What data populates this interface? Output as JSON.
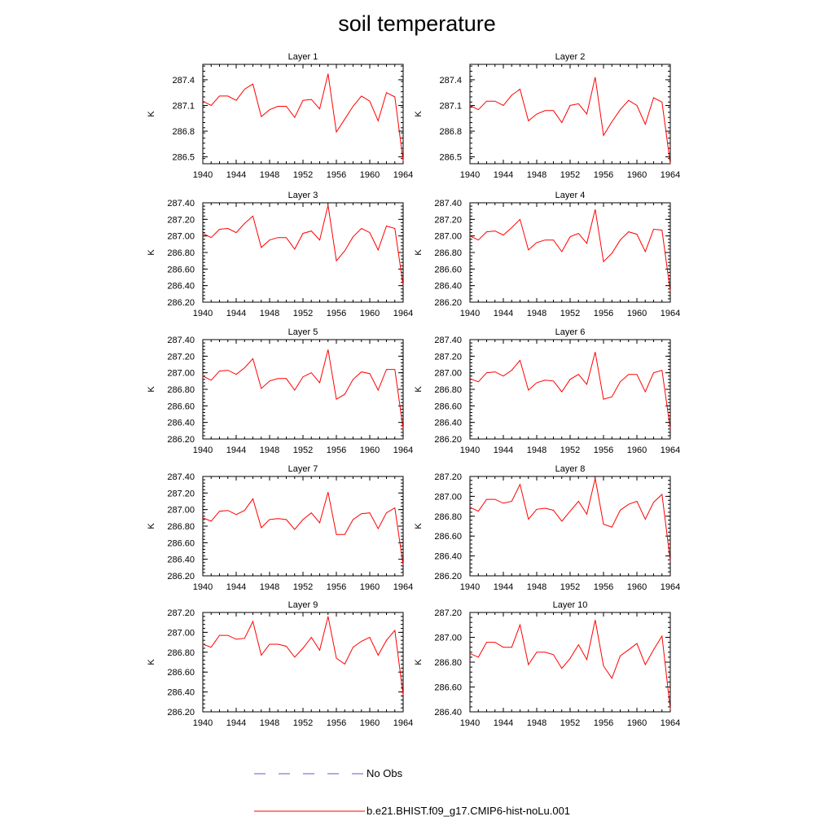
{
  "title": "soil temperature",
  "legend": [
    {
      "label": "No Obs",
      "color": "#5b5bd6",
      "dash": true
    },
    {
      "label": "b.e21.BHIST.f09_g17.CMIP6-hist-noLu.001",
      "color": "#ff0000",
      "dash": false
    }
  ],
  "chart_data": [
    {
      "type": "line",
      "title": "Layer 1",
      "ylabel": "K",
      "xlim": [
        1940,
        1964
      ],
      "ylim": [
        286.42,
        287.58
      ],
      "x_ticks": [
        "1940",
        "1944",
        "1948",
        "1952",
        "1956",
        "1960",
        "1964"
      ],
      "y_ticks": [
        286.5,
        286.8,
        287.1,
        287.4
      ],
      "y_tick_labels": [
        "286.5",
        "286.8",
        "287.1",
        "287.4"
      ],
      "series": [
        {
          "color": "#ff0000",
          "x": [
            1940,
            1941,
            1942,
            1943,
            1944,
            1945,
            1946,
            1947,
            1948,
            1949,
            1950,
            1951,
            1952,
            1953,
            1954,
            1955,
            1956,
            1957,
            1958,
            1959,
            1960,
            1961,
            1962,
            1963,
            1964
          ],
          "values": [
            287.15,
            287.1,
            287.21,
            287.21,
            287.16,
            287.29,
            287.35,
            286.97,
            287.05,
            287.09,
            287.09,
            286.96,
            287.16,
            287.17,
            287.06,
            287.47,
            286.79,
            286.94,
            287.09,
            287.21,
            287.15,
            286.92,
            287.25,
            287.2,
            286.45
          ]
        }
      ]
    },
    {
      "type": "line",
      "title": "Layer 2",
      "ylabel": "K",
      "xlim": [
        1940,
        1964
      ],
      "ylim": [
        286.42,
        287.58
      ],
      "x_ticks": [
        "1940",
        "1944",
        "1948",
        "1952",
        "1956",
        "1960",
        "1964"
      ],
      "y_ticks": [
        286.5,
        286.8,
        287.1,
        287.4
      ],
      "y_tick_labels": [
        "286.5",
        "286.8",
        "287.1",
        "287.4"
      ],
      "series": [
        {
          "color": "#ff0000",
          "x": [
            1940,
            1941,
            1942,
            1943,
            1944,
            1945,
            1946,
            1947,
            1948,
            1949,
            1950,
            1951,
            1952,
            1953,
            1954,
            1955,
            1956,
            1957,
            1958,
            1959,
            1960,
            1961,
            1962,
            1963,
            1964
          ],
          "values": [
            287.1,
            287.05,
            287.15,
            287.15,
            287.1,
            287.22,
            287.29,
            286.92,
            287.0,
            287.04,
            287.04,
            286.9,
            287.1,
            287.12,
            287.0,
            287.43,
            286.75,
            286.91,
            287.05,
            287.16,
            287.1,
            286.88,
            287.19,
            287.14,
            286.42
          ]
        }
      ]
    },
    {
      "type": "line",
      "title": "Layer 3",
      "ylabel": "K",
      "xlim": [
        1940,
        1964
      ],
      "ylim": [
        286.2,
        287.4
      ],
      "x_ticks": [
        "1940",
        "1944",
        "1948",
        "1952",
        "1956",
        "1960",
        "1964"
      ],
      "y_ticks": [
        286.2,
        286.4,
        286.6,
        286.8,
        287.0,
        287.2,
        287.4
      ],
      "y_tick_labels": [
        "286.20",
        "286.40",
        "286.60",
        "286.80",
        "287.00",
        "287.20",
        "287.40"
      ],
      "series": [
        {
          "color": "#ff0000",
          "x": [
            1940,
            1941,
            1942,
            1943,
            1944,
            1945,
            1946,
            1947,
            1948,
            1949,
            1950,
            1951,
            1952,
            1953,
            1954,
            1955,
            1956,
            1957,
            1958,
            1959,
            1960,
            1961,
            1962,
            1963,
            1964
          ],
          "values": [
            287.03,
            286.98,
            287.08,
            287.09,
            287.04,
            287.15,
            287.24,
            286.86,
            286.95,
            286.98,
            286.98,
            286.84,
            287.03,
            287.06,
            286.95,
            287.37,
            286.7,
            286.82,
            286.99,
            287.09,
            287.04,
            286.83,
            287.12,
            287.09,
            286.4
          ]
        }
      ]
    },
    {
      "type": "line",
      "title": "Layer 4",
      "ylabel": "K",
      "xlim": [
        1940,
        1964
      ],
      "ylim": [
        286.2,
        287.4
      ],
      "x_ticks": [
        "1940",
        "1944",
        "1948",
        "1952",
        "1956",
        "1960",
        "1964"
      ],
      "y_ticks": [
        286.2,
        286.4,
        286.6,
        286.8,
        287.0,
        287.2,
        287.4
      ],
      "y_tick_labels": [
        "286.20",
        "286.40",
        "286.60",
        "286.80",
        "287.00",
        "287.20",
        "287.40"
      ],
      "series": [
        {
          "color": "#ff0000",
          "x": [
            1940,
            1941,
            1942,
            1943,
            1944,
            1945,
            1946,
            1947,
            1948,
            1949,
            1950,
            1951,
            1952,
            1953,
            1954,
            1955,
            1956,
            1957,
            1958,
            1959,
            1960,
            1961,
            1962,
            1963,
            1964
          ],
          "values": [
            287.0,
            286.95,
            287.05,
            287.06,
            287.01,
            287.1,
            287.2,
            286.83,
            286.92,
            286.95,
            286.95,
            286.81,
            286.99,
            287.03,
            286.91,
            287.32,
            286.69,
            286.79,
            286.95,
            287.05,
            287.02,
            286.81,
            287.08,
            287.07,
            286.33
          ]
        }
      ]
    },
    {
      "type": "line",
      "title": "Layer 5",
      "ylabel": "K",
      "xlim": [
        1940,
        1964
      ],
      "ylim": [
        286.2,
        287.4
      ],
      "x_ticks": [
        "1940",
        "1944",
        "1948",
        "1952",
        "1956",
        "1960",
        "1964"
      ],
      "y_ticks": [
        286.2,
        286.4,
        286.6,
        286.8,
        287.0,
        287.2,
        287.4
      ],
      "y_tick_labels": [
        "286.20",
        "286.40",
        "286.60",
        "286.80",
        "287.00",
        "287.20",
        "287.40"
      ],
      "series": [
        {
          "color": "#ff0000",
          "x": [
            1940,
            1941,
            1942,
            1943,
            1944,
            1945,
            1946,
            1947,
            1948,
            1949,
            1950,
            1951,
            1952,
            1953,
            1954,
            1955,
            1956,
            1957,
            1958,
            1959,
            1960,
            1961,
            1962,
            1963,
            1964
          ],
          "values": [
            286.96,
            286.91,
            287.02,
            287.03,
            286.98,
            287.06,
            287.17,
            286.81,
            286.9,
            286.93,
            286.93,
            286.79,
            286.95,
            287.0,
            286.88,
            287.28,
            286.68,
            286.74,
            286.92,
            287.01,
            286.99,
            286.79,
            287.04,
            287.04,
            286.32
          ]
        }
      ]
    },
    {
      "type": "line",
      "title": "Layer 6",
      "ylabel": "K",
      "xlim": [
        1940,
        1964
      ],
      "ylim": [
        286.2,
        287.4
      ],
      "x_ticks": [
        "1940",
        "1944",
        "1948",
        "1952",
        "1956",
        "1960",
        "1964"
      ],
      "y_ticks": [
        286.2,
        286.4,
        286.6,
        286.8,
        287.0,
        287.2,
        287.4
      ],
      "y_tick_labels": [
        "286.20",
        "286.40",
        "286.60",
        "286.80",
        "287.00",
        "287.20",
        "287.40"
      ],
      "series": [
        {
          "color": "#ff0000",
          "x": [
            1940,
            1941,
            1942,
            1943,
            1944,
            1945,
            1946,
            1947,
            1948,
            1949,
            1950,
            1951,
            1952,
            1953,
            1954,
            1955,
            1956,
            1957,
            1958,
            1959,
            1960,
            1961,
            1962,
            1963,
            1964
          ],
          "values": [
            286.93,
            286.89,
            287.0,
            287.01,
            286.96,
            287.03,
            287.15,
            286.79,
            286.88,
            286.91,
            286.9,
            286.77,
            286.92,
            286.98,
            286.86,
            287.25,
            286.68,
            286.71,
            286.89,
            286.98,
            286.98,
            286.77,
            287.0,
            287.03,
            286.32
          ]
        }
      ]
    },
    {
      "type": "line",
      "title": "Layer 7",
      "ylabel": "K",
      "xlim": [
        1940,
        1964
      ],
      "ylim": [
        286.2,
        287.4
      ],
      "x_ticks": [
        "1940",
        "1944",
        "1948",
        "1952",
        "1956",
        "1960",
        "1964"
      ],
      "y_ticks": [
        286.2,
        286.4,
        286.6,
        286.8,
        287.0,
        287.2,
        287.4
      ],
      "y_tick_labels": [
        "286.20",
        "286.40",
        "286.60",
        "286.80",
        "287.00",
        "287.20",
        "287.40"
      ],
      "series": [
        {
          "color": "#ff0000",
          "x": [
            1940,
            1941,
            1942,
            1943,
            1944,
            1945,
            1946,
            1947,
            1948,
            1949,
            1950,
            1951,
            1952,
            1953,
            1954,
            1955,
            1956,
            1957,
            1958,
            1959,
            1960,
            1961,
            1962,
            1963,
            1964
          ],
          "values": [
            286.9,
            286.86,
            286.98,
            286.99,
            286.94,
            286.99,
            287.13,
            286.78,
            286.88,
            286.89,
            286.88,
            286.76,
            286.88,
            286.96,
            286.84,
            287.21,
            286.7,
            286.7,
            286.88,
            286.95,
            286.96,
            286.77,
            286.96,
            287.02,
            286.33
          ]
        }
      ]
    },
    {
      "type": "line",
      "title": "Layer 8",
      "ylabel": "K",
      "xlim": [
        1940,
        1964
      ],
      "ylim": [
        286.2,
        287.2
      ],
      "x_ticks": [
        "1940",
        "1944",
        "1948",
        "1952",
        "1956",
        "1960",
        "1964"
      ],
      "y_ticks": [
        286.2,
        286.4,
        286.6,
        286.8,
        287.0,
        287.2
      ],
      "y_tick_labels": [
        "286.20",
        "286.40",
        "286.60",
        "286.80",
        "287.00",
        "287.20"
      ],
      "series": [
        {
          "color": "#ff0000",
          "x": [
            1940,
            1941,
            1942,
            1943,
            1944,
            1945,
            1946,
            1947,
            1948,
            1949,
            1950,
            1951,
            1952,
            1953,
            1954,
            1955,
            1956,
            1957,
            1958,
            1959,
            1960,
            1961,
            1962,
            1963,
            1964
          ],
          "values": [
            286.89,
            286.85,
            286.97,
            286.97,
            286.93,
            286.95,
            287.12,
            286.77,
            286.87,
            286.88,
            286.86,
            286.75,
            286.85,
            286.95,
            286.82,
            287.18,
            286.72,
            286.69,
            286.86,
            286.92,
            286.95,
            286.77,
            286.94,
            287.02,
            286.35
          ]
        }
      ]
    },
    {
      "type": "line",
      "title": "Layer 9",
      "ylabel": "K",
      "xlim": [
        1940,
        1964
      ],
      "ylim": [
        286.2,
        287.2
      ],
      "x_ticks": [
        "1940",
        "1944",
        "1948",
        "1952",
        "1956",
        "1960",
        "1964"
      ],
      "y_ticks": [
        286.2,
        286.4,
        286.6,
        286.8,
        287.0,
        287.2
      ],
      "y_tick_labels": [
        "286.20",
        "286.40",
        "286.60",
        "286.80",
        "287.00",
        "287.20"
      ],
      "series": [
        {
          "color": "#ff0000",
          "x": [
            1940,
            1941,
            1942,
            1943,
            1944,
            1945,
            1946,
            1947,
            1948,
            1949,
            1950,
            1951,
            1952,
            1953,
            1954,
            1955,
            1956,
            1957,
            1958,
            1959,
            1960,
            1961,
            1962,
            1963,
            1964
          ],
          "values": [
            286.88,
            286.85,
            286.97,
            286.97,
            286.93,
            286.94,
            287.11,
            286.77,
            286.88,
            286.88,
            286.86,
            286.75,
            286.84,
            286.95,
            286.82,
            287.16,
            286.74,
            286.68,
            286.85,
            286.91,
            286.95,
            286.77,
            286.92,
            287.02,
            286.37
          ]
        }
      ]
    },
    {
      "type": "line",
      "title": "Layer 10",
      "ylabel": "K",
      "xlim": [
        1940,
        1964
      ],
      "ylim": [
        286.4,
        287.2
      ],
      "x_ticks": [
        "1940",
        "1944",
        "1948",
        "1952",
        "1956",
        "1960",
        "1964"
      ],
      "y_ticks": [
        286.4,
        286.6,
        286.8,
        287.0,
        287.2
      ],
      "y_tick_labels": [
        "286.40",
        "286.60",
        "286.80",
        "287.00",
        "287.20"
      ],
      "series": [
        {
          "color": "#ff0000",
          "x": [
            1940,
            1941,
            1942,
            1943,
            1944,
            1945,
            1946,
            1947,
            1948,
            1949,
            1950,
            1951,
            1952,
            1953,
            1954,
            1955,
            1956,
            1957,
            1958,
            1959,
            1960,
            1961,
            1962,
            1963,
            1964
          ],
          "values": [
            286.87,
            286.84,
            286.96,
            286.96,
            286.92,
            286.92,
            287.1,
            286.78,
            286.88,
            286.88,
            286.86,
            286.75,
            286.83,
            286.94,
            286.82,
            287.14,
            286.77,
            286.67,
            286.85,
            286.9,
            286.95,
            286.78,
            286.9,
            287.01,
            286.42
          ]
        }
      ]
    }
  ]
}
